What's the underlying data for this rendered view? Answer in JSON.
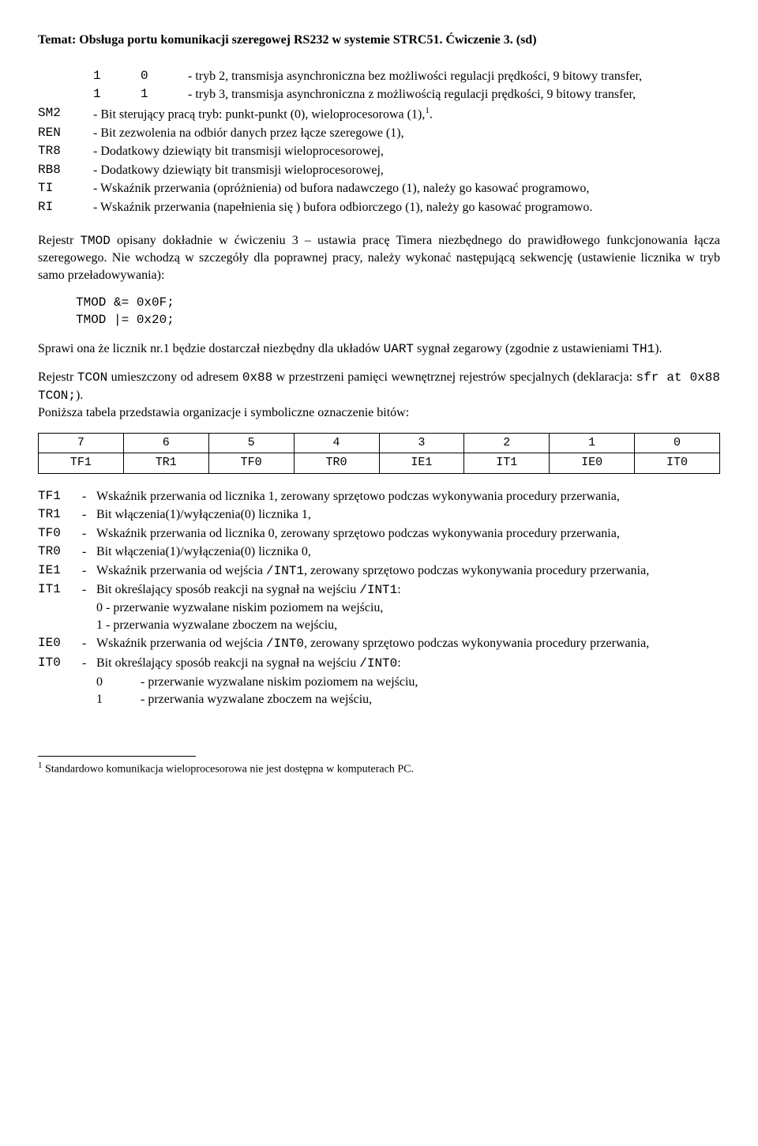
{
  "title": "Temat: Obsługa portu komunikacji szeregowej RS232 w systemie STRC51. Ćwiczenie 3. (sd)",
  "modes": {
    "m10_col1": "1",
    "m10_col2": "0",
    "m10_desc": "- tryb 2, transmisja asynchroniczna bez możliwości regulacji prędkości, 9 bitowy transfer,",
    "m11_col1": "1",
    "m11_col2": "1",
    "m11_desc": "- tryb 3, transmisja asynchroniczna z możliwością regulacji prędkości, 9 bitowy transfer,"
  },
  "regs": {
    "SM2": {
      "key": "SM2",
      "desc_a": "- Bit sterujący pracą tryb: punkt-punkt (0), wieloprocesorowa (1),",
      "desc_b": "."
    },
    "REN": {
      "key": "REN",
      "desc": "- Bit zezwolenia na odbiór danych przez łącze szeregowe (1),"
    },
    "TR8": {
      "key": "TR8",
      "desc": "- Dodatkowy dziewiąty bit transmisji wieloprocesorowej,"
    },
    "RB8": {
      "key": "RB8",
      "desc": "- Dodatkowy dziewiąty bit transmisji wieloprocesorowej,"
    },
    "TI": {
      "key": "TI",
      "desc": "- Wskaźnik przerwania (opróżnienia) od bufora nadawczego (1), należy go kasować programowo,"
    },
    "RI": {
      "key": "RI",
      "desc": "- Wskaźnik przerwania (napełnienia się ) bufora odbiorczego (1), należy go kasować programowo."
    }
  },
  "p1_a": "Rejestr ",
  "p1_tmod": "TMOD",
  "p1_b": " opisany dokładnie w ćwiczeniu 3 – ustawia pracę Timera niezbędnego do prawidłowego funkcjonowania łącza szeregowego. Nie wchodzą w szczegóły dla poprawnej pracy, należy wykonać następującą sekwencję (ustawienie licznika w tryb samo przeładowywania):",
  "code": "TMOD &= 0x0F;\nTMOD |= 0x20;",
  "p2_a": "Sprawi ona   że licznik nr.1 będzie dostarczał niezbędny dla układów ",
  "p2_uart": "UART",
  "p2_b": " sygnał zegarowy (zgodnie z ustawieniami ",
  "p2_th1": "TH1",
  "p2_c": ").",
  "p3_a": "Rejestr ",
  "p3_tcon": "TCON",
  "p3_b": "  umieszczony od adresem ",
  "p3_addr": "0x88",
  "p3_c": " w przestrzeni pamięci wewnętrznej rejestrów specjalnych (deklaracja: ",
  "p3_decl": "sfr at 0x88 TCON;",
  "p3_d": ").",
  "p3_e": "Poniższa tabela przedstawia organizacje i symboliczne oznaczenie bitów:",
  "table": {
    "head": [
      "7",
      "6",
      "5",
      "4",
      "3",
      "2",
      "1",
      "0"
    ],
    "row": [
      "TF1",
      "TR1",
      "TF0",
      "TR0",
      "IE1",
      "IT1",
      "IE0",
      "IT0"
    ]
  },
  "bits": {
    "TF1": {
      "key": "TF1",
      "desc": "Wskaźnik przerwania od licznika 1, zerowany sprzętowo podczas wykonywania procedury przerwania,"
    },
    "TR1": {
      "key": "TR1",
      "desc": "Bit włączenia(1)/wyłączenia(0) licznika 1,"
    },
    "TF0": {
      "key": "TF0",
      "desc": "Wskaźnik przerwania od licznika 0, zerowany sprzętowo podczas wykonywania procedury przerwania,"
    },
    "TR0": {
      "key": "TR0",
      "desc": "Bit włączenia(1)/wyłączenia(0) licznika 0,"
    },
    "IE1": {
      "key": "IE1",
      "desc_a": "Wskaźnik przerwania od wejścia ",
      "mono": "/INT1",
      "desc_b": ", zerowany sprzętowo podczas wykonywania procedury przerwania,"
    },
    "IT1": {
      "key": "IT1",
      "desc_a": "Bit określający sposób reakcji na sygnał na wejściu ",
      "mono": "/INT1",
      "desc_b": ":",
      "l0": "0 - przerwanie wyzwalane niskim poziomem na wejściu,",
      "l1": "1 - przerwania wyzwalane zboczem na wejściu,"
    },
    "IE0": {
      "key": "IE0",
      "desc_a": "Wskaźnik przerwania od wejścia ",
      "mono": "/INT0",
      "desc_b": ", zerowany sprzętowo podczas wykonywania procedury przerwania,"
    },
    "IT0": {
      "key": "IT0",
      "desc_a": "Bit określający sposób reakcji na sygnał na wejściu ",
      "mono": "/INT0",
      "desc_b": ":",
      "s0k": "0",
      "s0v": "- przerwanie wyzwalane niskim poziomem na wejściu,",
      "s1k": "1",
      "s1v": "- przerwania wyzwalane zboczem na wejściu,"
    }
  },
  "footnote_num": "1",
  "footnote": " Standardowo komunikacja wieloprocesorowa nie jest dostępna w komputerach PC."
}
